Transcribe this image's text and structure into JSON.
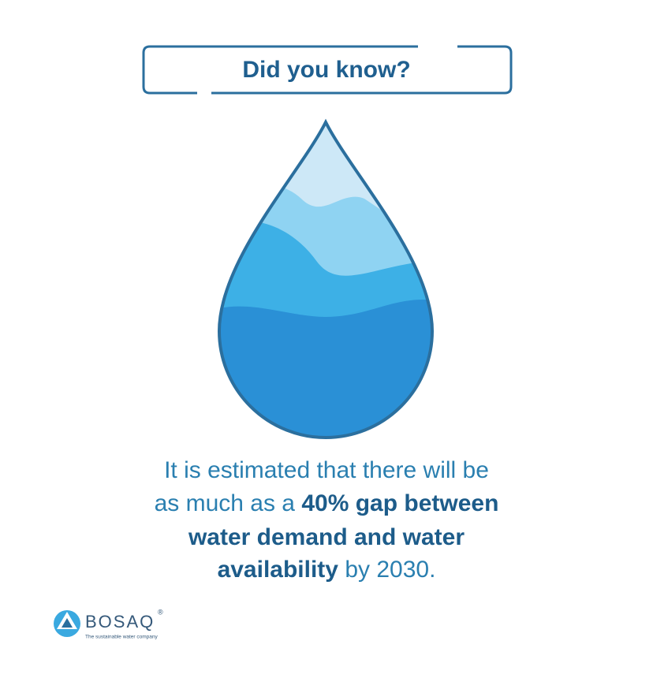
{
  "header": {
    "title": "Did you know?"
  },
  "body": {
    "lines": [
      [
        {
          "text": "It is estimated that there will be",
          "bold": false
        }
      ],
      [
        {
          "text": "as much as a ",
          "bold": false
        },
        {
          "text": "40% gap between",
          "bold": true
        }
      ],
      [
        {
          "text": "water demand and water",
          "bold": true
        }
      ],
      [
        {
          "text": "availability",
          "bold": true
        },
        {
          "text": " by 2030.",
          "bold": false
        }
      ]
    ]
  },
  "logo": {
    "name": "BOSAQ",
    "mark": "®",
    "tagline": "The sustainable water company"
  }
}
